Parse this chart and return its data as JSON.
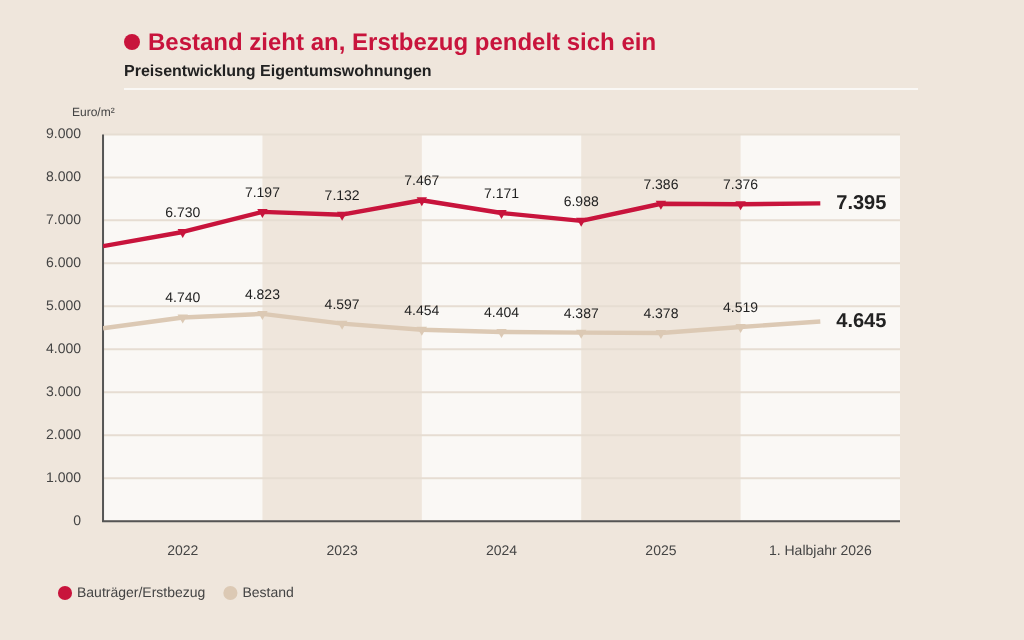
{
  "chart_data": {
    "type": "line",
    "title": "Bestand zieht an, Erstbezug pendelt sich ein",
    "subtitle": "Preisentwicklung Eigentumswohnungen",
    "ylabel": "Euro/m²",
    "x": [
      2021.5,
      2022,
      2022.5,
      2023,
      2023.5,
      2024,
      2024.5,
      2025,
      2025.5,
      2026
    ],
    "xlim": [
      2021.5,
      2026.5
    ],
    "xticks": [
      2022,
      2023,
      2024,
      2025,
      {
        "value": 2026,
        "label": "1. Halbjahr 2026"
      }
    ],
    "ylim": [
      0,
      9000
    ],
    "yticks": [
      {
        "value": 0,
        "label": "0"
      },
      {
        "value": 1000,
        "label": "1.000"
      },
      {
        "value": 2000,
        "label": "2.000"
      },
      {
        "value": 3000,
        "label": "3.000"
      },
      {
        "value": 4000,
        "label": "4.000"
      },
      {
        "value": 5000,
        "label": "5.000"
      },
      {
        "value": 6000,
        "label": "6.000"
      },
      {
        "value": 7000,
        "label": "7.000"
      },
      {
        "value": 8000,
        "label": "8.000"
      },
      {
        "value": 9000,
        "label": "9.000"
      }
    ],
    "series": [
      {
        "name": "Bauträger/Erstbezug",
        "color": "#c8143c",
        "values": [
          6400,
          6730,
          7197,
          7132,
          7467,
          7171,
          6988,
          7386,
          7376,
          7395
        ],
        "value_labels": [
          null,
          "6.730",
          "7.197",
          "7.132",
          "7.467",
          "7.171",
          "6.988",
          "7.386",
          "7.376",
          "7.395"
        ]
      },
      {
        "name": "Bestand",
        "color": "#dcc9b4",
        "values": [
          4490,
          4740,
          4823,
          4597,
          4454,
          4404,
          4387,
          4378,
          4519,
          4645
        ],
        "value_labels": [
          null,
          "4.740",
          "4.823",
          "4.597",
          "4.454",
          "4.404",
          "4.387",
          "4.378",
          "4.519",
          "4.645"
        ]
      }
    ],
    "bands": [
      {
        "axis": "x",
        "from": 2022.5,
        "to": 2023.5,
        "color": "#efe6dc"
      },
      {
        "axis": "x",
        "from": 2024.5,
        "to": 2025.5,
        "color": "#efe6dc"
      }
    ],
    "grid": "y",
    "legend": "bottom left",
    "marker": "triangle"
  }
}
